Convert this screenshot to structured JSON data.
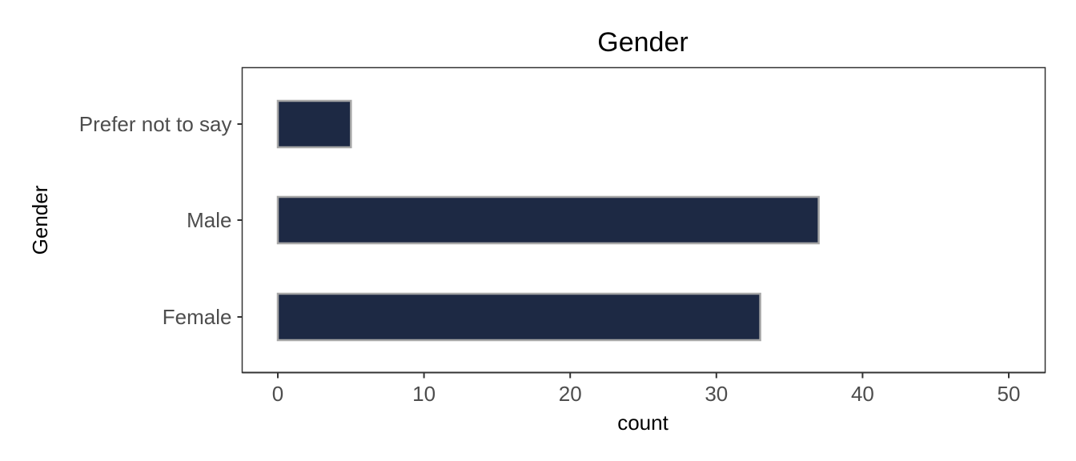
{
  "chart_data": {
    "type": "bar",
    "orientation": "horizontal",
    "title": "Gender",
    "xlabel": "count",
    "ylabel": "Gender",
    "categories": [
      "Female",
      "Male",
      "Prefer not to say"
    ],
    "values": [
      33,
      37,
      5
    ],
    "xlim": [
      0,
      50
    ],
    "xticks": [
      0,
      10,
      20,
      30,
      40,
      50
    ],
    "grid": false,
    "legend": "none",
    "bar_fill": "#1d2944",
    "bar_outline": "#a6a6a6"
  }
}
